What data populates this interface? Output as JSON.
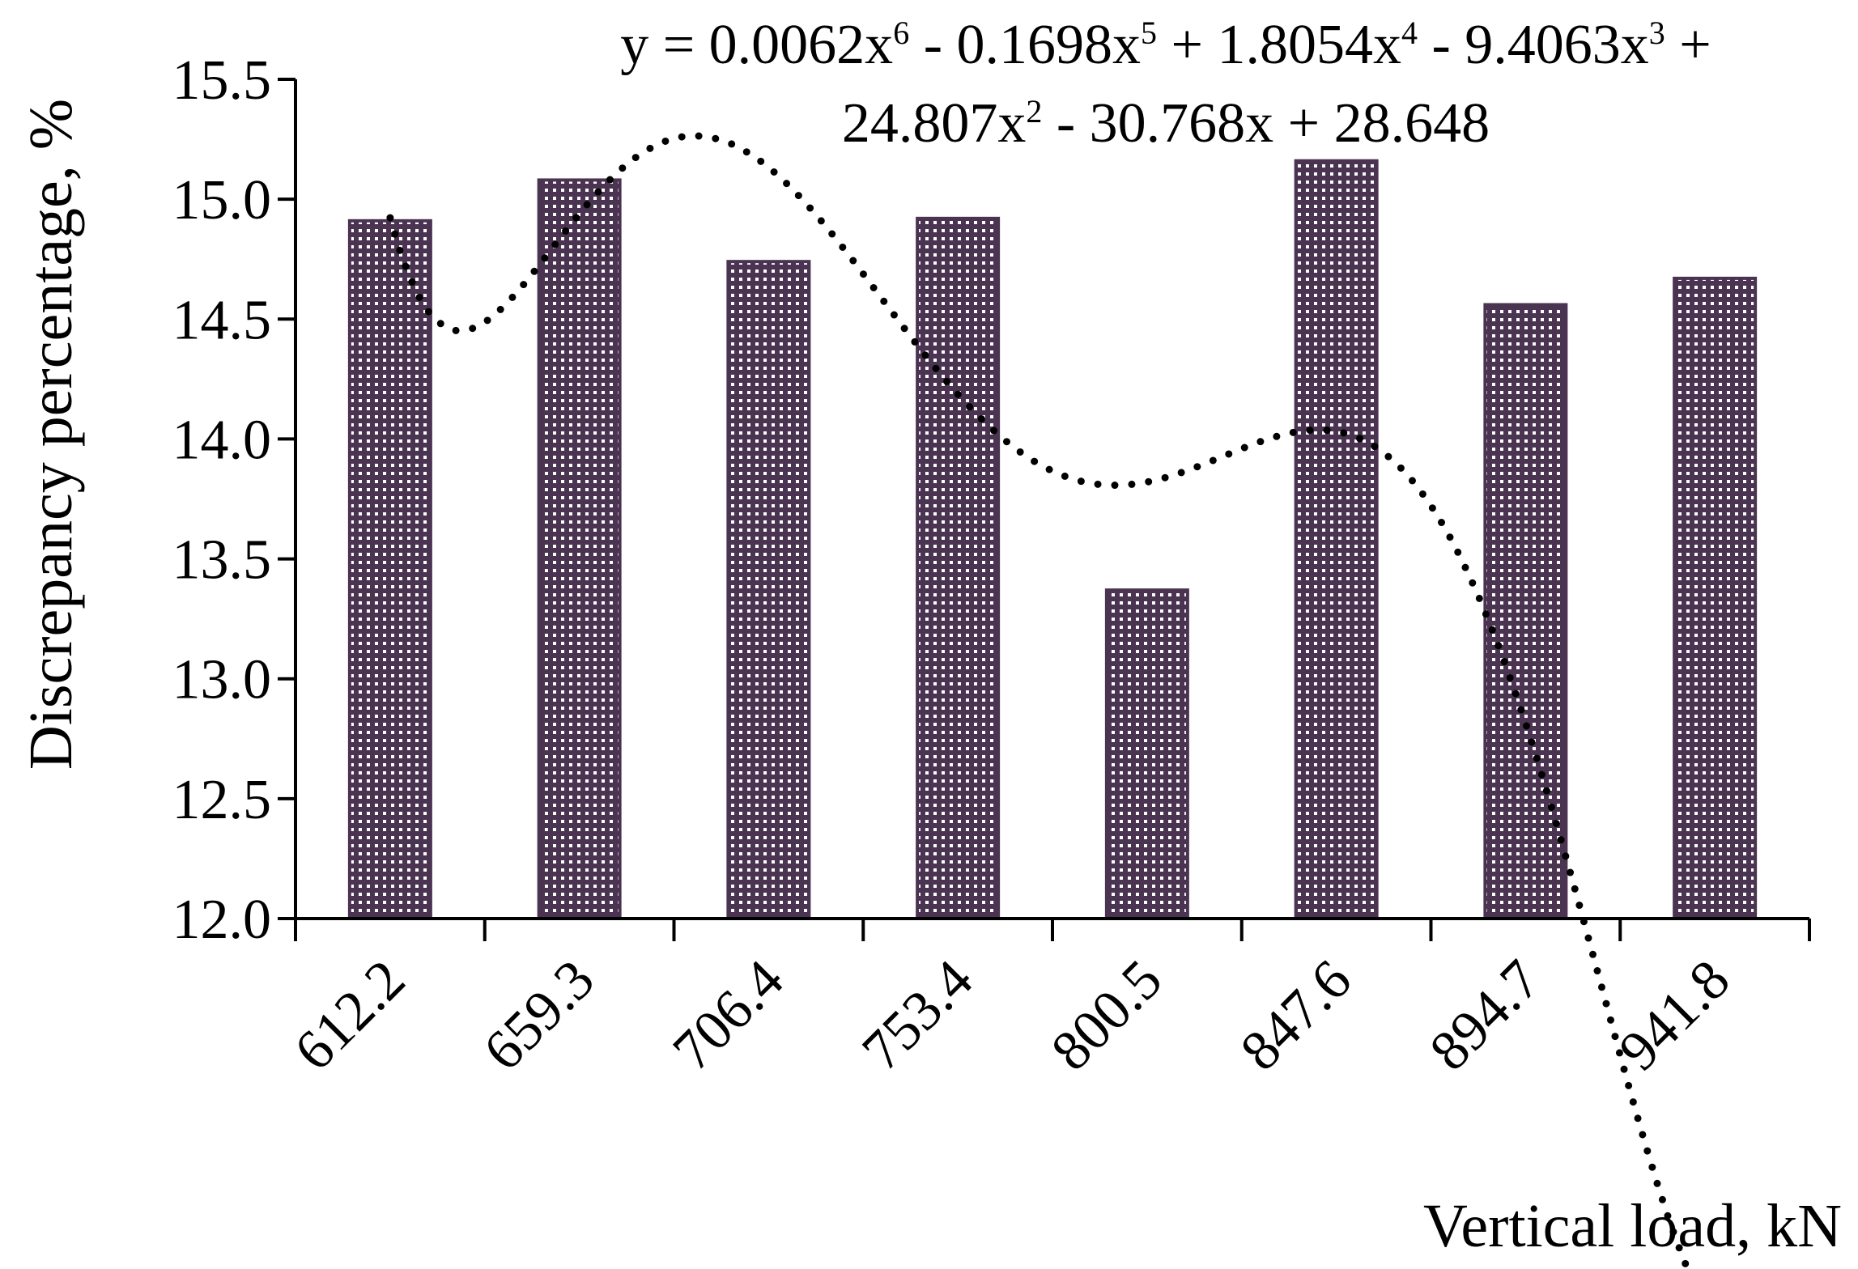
{
  "chart_data": {
    "type": "bar",
    "xlabel": "Vertical load, kN",
    "ylabel": "Discrepancy percentage, %",
    "categories": [
      "612.2",
      "659.3",
      "706.4",
      "753.4",
      "800.5",
      "847.6",
      "894.7",
      "941.8"
    ],
    "series": [
      {
        "values": [
          14.91,
          15.08,
          14.74,
          14.92,
          13.37,
          15.16,
          14.56,
          14.67
        ]
      }
    ],
    "ylim": [
      12.0,
      15.5
    ],
    "yticks": [
      "12.0",
      "12.5",
      "13.0",
      "13.5",
      "14.0",
      "14.5",
      "15.0",
      "15.5"
    ],
    "trendline": {
      "type": "polynomial",
      "order": 6,
      "style": "dotted",
      "coefficients": [
        0.0062,
        -0.1698,
        1.8054,
        -9.4063,
        24.807,
        -30.768,
        28.648
      ],
      "equation_line1": {
        "p1": "y = 0.0062x",
        "e1": "6",
        "p2": " - 0.1698x",
        "e2": "5",
        "p3": " + 1.8054x",
        "e3": "4",
        "p4": " - 9.4063x",
        "e4": "3",
        "p5": " +"
      },
      "equation_line2": {
        "p1": "24.807x",
        "e1": "2",
        "p2": " - 30.768x + 28.648"
      }
    },
    "grid": false,
    "legend": "none",
    "bar_color": "#4b3352",
    "bar_pattern_color": "#ffffff",
    "trendline_color": "#000000"
  }
}
